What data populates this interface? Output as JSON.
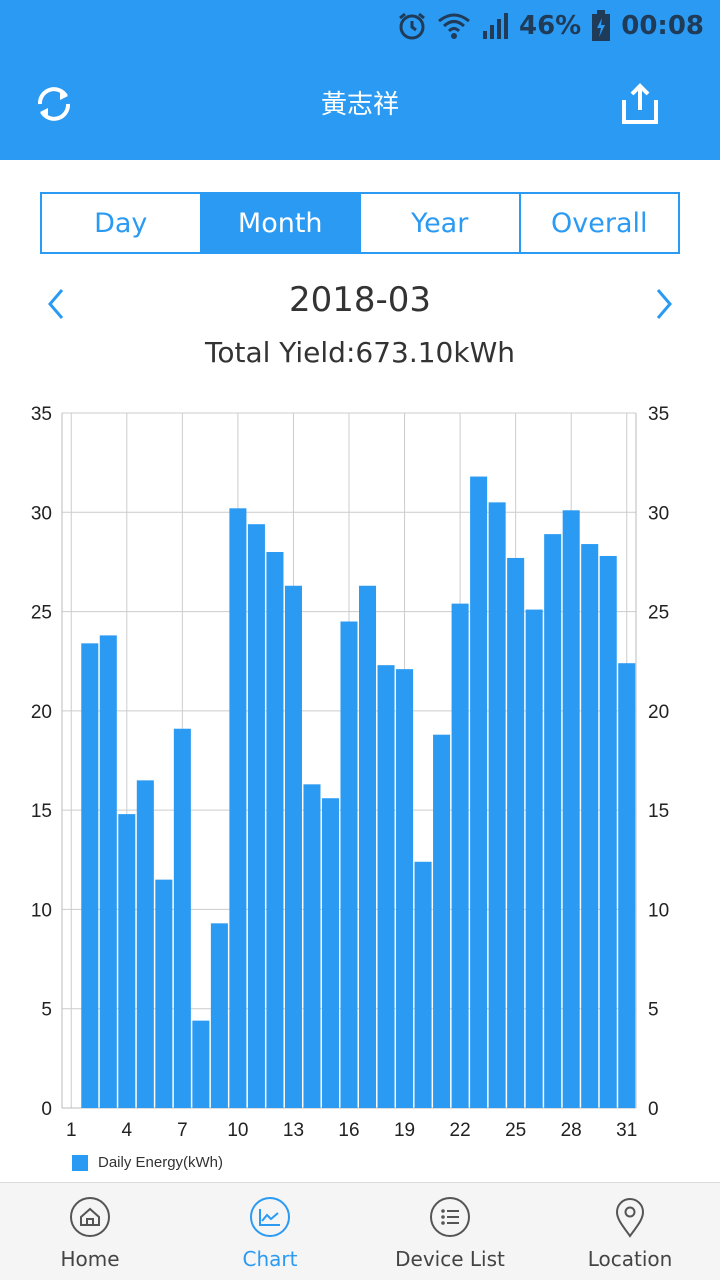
{
  "status_bar": {
    "battery": "46%",
    "time": "00:08"
  },
  "header": {
    "title": "黃志祥"
  },
  "tabs": [
    {
      "label": "Day",
      "active": false
    },
    {
      "label": "Month",
      "active": true
    },
    {
      "label": "Year",
      "active": false
    },
    {
      "label": "Overall",
      "active": false
    }
  ],
  "period": {
    "date": "2018-03",
    "total_yield": "Total Yield:673.10kWh"
  },
  "chart_data": {
    "type": "bar",
    "series": [
      {
        "name": "Daily Energy(kWh)",
        "x": [
          2,
          3,
          4,
          5,
          6,
          7,
          8,
          9,
          10,
          11,
          12,
          13,
          14,
          15,
          16,
          17,
          18,
          19,
          20,
          21,
          22,
          23,
          24,
          25,
          26,
          27,
          28,
          29,
          30,
          31
        ],
        "values": [
          23.4,
          23.8,
          14.8,
          16.5,
          11.5,
          19.1,
          4.4,
          9.3,
          30.2,
          29.4,
          28.0,
          26.3,
          16.3,
          15.6,
          24.5,
          26.3,
          22.3,
          22.1,
          12.4,
          18.8,
          25.4,
          31.8,
          30.5,
          27.7,
          25.1,
          28.9,
          30.1,
          28.4,
          27.8,
          22.4
        ]
      }
    ],
    "x_ticks": [
      "1",
      "4",
      "7",
      "10",
      "13",
      "16",
      "19",
      "22",
      "25",
      "28",
      "31"
    ],
    "y_ticks": [
      "0",
      "5",
      "10",
      "15",
      "20",
      "25",
      "30",
      "35"
    ],
    "xlim": [
      0.5,
      31.5
    ],
    "ylim": [
      0,
      35
    ],
    "grid": true,
    "color": "#2b9af3",
    "legend_position": "bottom-left"
  },
  "bottom_nav": [
    {
      "label": "Home",
      "icon": "home-icon",
      "active": false
    },
    {
      "label": "Chart",
      "icon": "chart-icon",
      "active": true
    },
    {
      "label": "Device List",
      "icon": "list-icon",
      "active": false
    },
    {
      "label": "Location",
      "icon": "location-pin-icon",
      "active": false
    }
  ]
}
